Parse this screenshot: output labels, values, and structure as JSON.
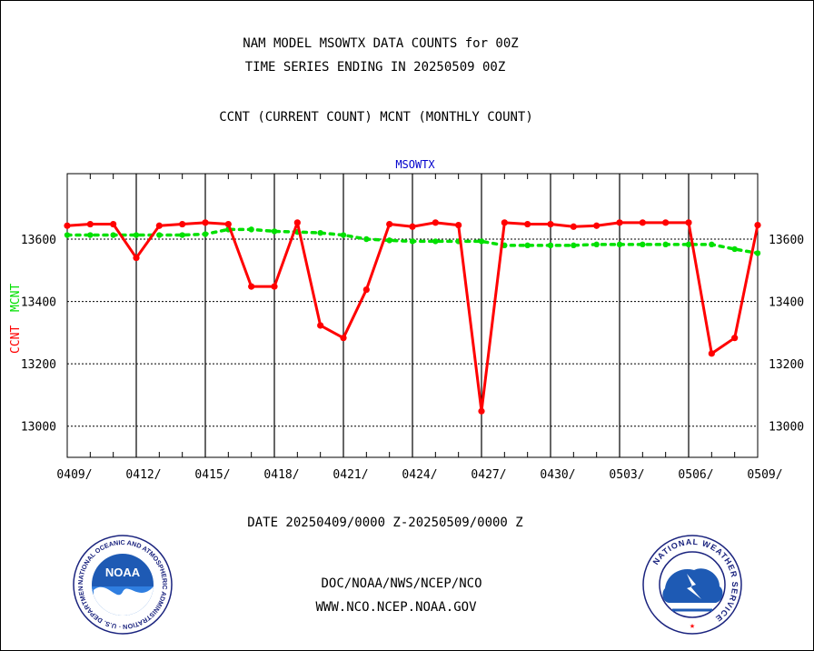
{
  "header": {
    "title_line1": "NAM MODEL MSOWTX DATA COUNTS for 00Z",
    "title_line2": "TIME SERIES ENDING IN 20250509 00Z",
    "subtitle": "CCNT (CURRENT COUNT) MCNT (MONTHLY COUNT)"
  },
  "footer": {
    "date_range": "DATE 20250409/0000 Z-20250509/0000 Z",
    "link1": "DOC/NOAA/NWS/NCEP/NCO",
    "link2": "WWW.NCO.NCEP.NOAA.GOV"
  },
  "logos": {
    "noaa_text": "NOAA",
    "noaa_ring_text": "NATIONAL OCEANIC AND ATMOSPHERIC ADMINISTRATION · U.S. DEPARTMENT OF COMMERCE ·",
    "nws_ring_text": "NATIONAL WEATHER SERVICE"
  },
  "colors": {
    "ccnt": "#ff0000",
    "mcnt": "#00e000",
    "title": "#000000",
    "date_text": "#ff0000",
    "link_text": "#0000cc",
    "plot_label": "#0000cc"
  },
  "chart_data": {
    "type": "line",
    "plot_label": "MSOWTX",
    "ylabel_ccnt": "CCNT",
    "ylabel_mcnt": "MCNT",
    "ylim": [
      12900,
      13810
    ],
    "yticks": [
      13000,
      13200,
      13400,
      13600
    ],
    "x_tick_labels": [
      "0409/",
      "0412/",
      "0415/",
      "0418/",
      "0421/",
      "0424/",
      "0427/",
      "0430/",
      "0503/",
      "0506/",
      "0509/"
    ],
    "x_start": "0409",
    "x_end": "0509",
    "grid": true,
    "series": [
      {
        "name": "CCNT",
        "values": [
          13643,
          13648,
          13648,
          13540,
          13643,
          13648,
          13653,
          13648,
          13448,
          13448,
          13653,
          13323,
          13283,
          13438,
          13648,
          13640,
          13653,
          13645,
          13048,
          13653,
          13648,
          13648,
          13640,
          13643,
          13653,
          13653,
          13653,
          13653,
          13233,
          13283,
          13645
        ]
      },
      {
        "name": "MCNT",
        "values": [
          13613,
          13613,
          13613,
          13613,
          13613,
          13613,
          13616,
          13631,
          13631,
          13625,
          13623,
          13620,
          13613,
          13600,
          13596,
          13593,
          13593,
          13593,
          13593,
          13580,
          13580,
          13580,
          13580,
          13583,
          13583,
          13583,
          13583,
          13583,
          13583,
          13568,
          13555
        ]
      }
    ]
  }
}
